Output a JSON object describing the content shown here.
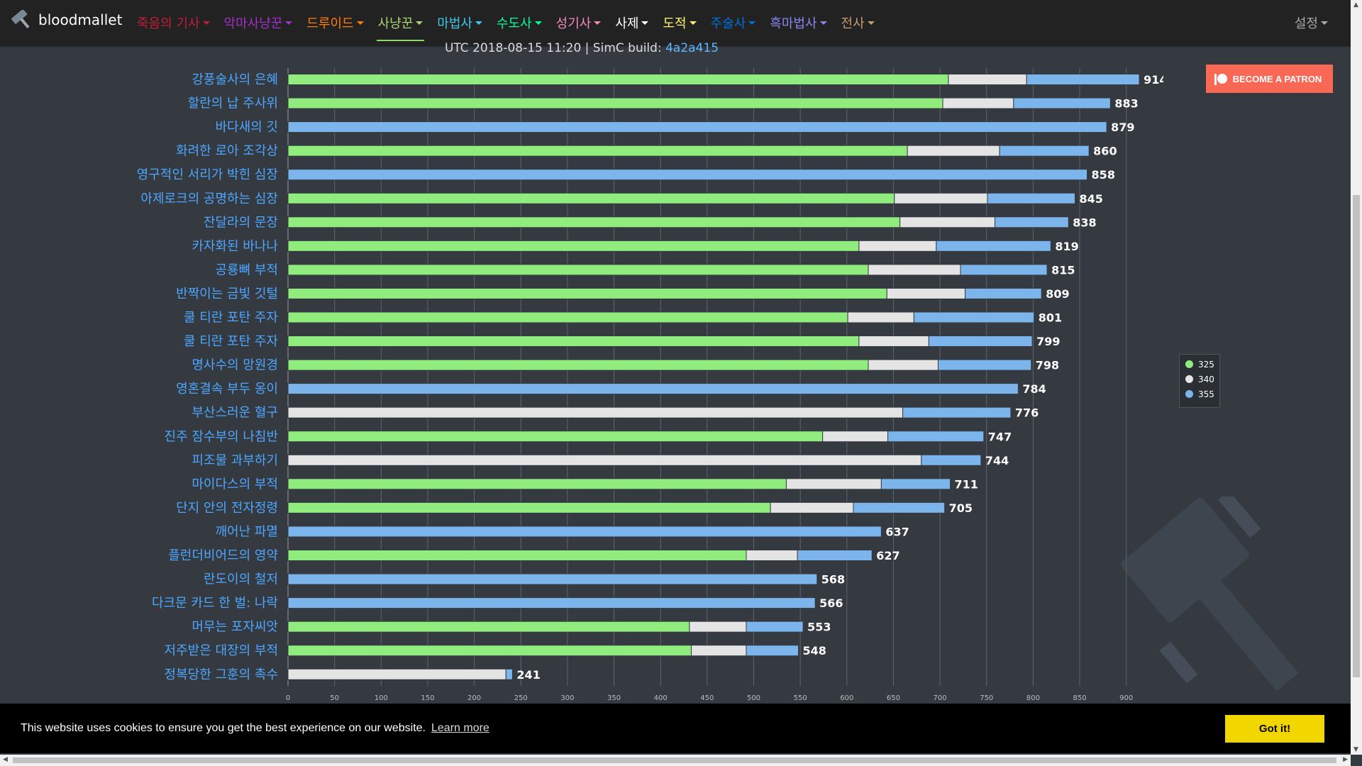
{
  "brand": {
    "name": "bloodmallet"
  },
  "nav": {
    "items": [
      {
        "label": "죽음의 기사",
        "color": "#c41e3a",
        "caret": true
      },
      {
        "label": "악마사냥꾼",
        "color": "#a330c9",
        "caret": true
      },
      {
        "label": "드루이드",
        "color": "#ff7c0a",
        "caret": true
      },
      {
        "label": "사냥꾼",
        "color": "#aad372",
        "caret": true,
        "active": true
      },
      {
        "label": "마법사",
        "color": "#3fc7eb",
        "caret": true
      },
      {
        "label": "수도사",
        "color": "#00ff98",
        "caret": true
      },
      {
        "label": "성기사",
        "color": "#f48cba",
        "caret": true
      },
      {
        "label": "사제",
        "color": "#ffffff",
        "caret": true
      },
      {
        "label": "도적",
        "color": "#fff468",
        "caret": true
      },
      {
        "label": "주술사",
        "color": "#0070dd",
        "caret": true
      },
      {
        "label": "흑마법사",
        "color": "#8788ee",
        "caret": true
      },
      {
        "label": "전사",
        "color": "#c69b6d",
        "caret": true
      }
    ],
    "settings_label": "설정"
  },
  "subtitle": {
    "prefix": "UTC 2018-08-15 11:20 | SimC build: ",
    "build": "4a2a415"
  },
  "patron_button": {
    "label": "BECOME A PATRON"
  },
  "cookie_banner": {
    "text": "This website uses cookies to ensure you get the best experience on our website.",
    "link": "Learn more",
    "button": "Got it!"
  },
  "chart_data": {
    "type": "bar",
    "orientation": "horizontal",
    "stacked": true,
    "xlim": [
      0,
      1000
    ],
    "xticks": [
      0,
      50,
      100,
      150,
      200,
      250,
      300,
      350,
      400,
      450,
      500,
      550,
      600,
      650,
      700,
      750,
      800,
      850,
      900,
      950,
      1000
    ],
    "grid": true,
    "legend_position": "right",
    "series": [
      {
        "name": "325",
        "color": "#90ed7d"
      },
      {
        "name": "340",
        "color": "#e4e4e4"
      },
      {
        "name": "355",
        "color": "#7cb5ec"
      }
    ],
    "categories": [
      "강풍술사의 은혜",
      "할란의 납 주사위",
      "바다새의 깃",
      "화려한 로아 조각상",
      "영구적인 서리가 박힌 심장",
      "아제로크의 공명하는 심장",
      "잔달라의 문장",
      "카자화된 바나나",
      "공룡뼈 부적",
      "반짝이는 금빛 깃털",
      "쿨 티란 포탄 주자",
      "쿨 티란 포탄 주자",
      "명사수의 망원경",
      "영혼결속 부두 옹이",
      "부산스러운 혈구",
      "진주 잠수부의 나침반",
      "피조물 과부하기",
      "마이다스의 부적",
      "단지 안의 전자정령",
      "깨어난 파멸",
      "플런더비어드의 영약",
      "란도이의 철저",
      "다크문 카드 한 벌: 나락",
      "머무는 포자씨앗",
      "저주받은 대장의 부적",
      "정복당한 그훈의 촉수"
    ],
    "rows": [
      {
        "v325": 709,
        "v340": 793,
        "v355": 914,
        "total": 914
      },
      {
        "v325": 703,
        "v340": 779,
        "v355": 883,
        "total": 883
      },
      {
        "v325": null,
        "v340": null,
        "v355": 879,
        "total": 879
      },
      {
        "v325": 665,
        "v340": 764,
        "v355": 860,
        "total": 860
      },
      {
        "v325": null,
        "v340": null,
        "v355": 858,
        "total": 858
      },
      {
        "v325": 651,
        "v340": 751,
        "v355": 845,
        "total": 845
      },
      {
        "v325": 657,
        "v340": 759,
        "v355": 838,
        "total": 838
      },
      {
        "v325": 613,
        "v340": 696,
        "v355": 819,
        "total": 819
      },
      {
        "v325": 623,
        "v340": 722,
        "v355": 815,
        "total": 815
      },
      {
        "v325": 643,
        "v340": 727,
        "v355": 809,
        "total": 809
      },
      {
        "v325": 601,
        "v340": 672,
        "v355": 801,
        "total": 801
      },
      {
        "v325": 613,
        "v340": 688,
        "v355": 799,
        "total": 799
      },
      {
        "v325": 623,
        "v340": 698,
        "v355": 798,
        "total": 798
      },
      {
        "v325": null,
        "v340": null,
        "v355": 784,
        "total": 784
      },
      {
        "v325": null,
        "v340": 660,
        "v355": 776,
        "total": 776
      },
      {
        "v325": 574,
        "v340": 644,
        "v355": 747,
        "total": 747
      },
      {
        "v325": null,
        "v340": 680,
        "v355": 744,
        "total": 744
      },
      {
        "v325": 535,
        "v340": 637,
        "v355": 711,
        "total": 711
      },
      {
        "v325": 518,
        "v340": 607,
        "v355": 705,
        "total": 705
      },
      {
        "v325": null,
        "v340": null,
        "v355": 637,
        "total": 637
      },
      {
        "v325": 492,
        "v340": 547,
        "v355": 627,
        "total": 627
      },
      {
        "v325": null,
        "v340": null,
        "v355": 568,
        "total": 568
      },
      {
        "v325": null,
        "v340": null,
        "v355": 566,
        "total": 566
      },
      {
        "v325": 431,
        "v340": 492,
        "v355": 553,
        "total": 553
      },
      {
        "v325": 433,
        "v340": 492,
        "v355": 548,
        "total": 548
      },
      {
        "v325": null,
        "v340": 234,
        "v355": 241,
        "total": 241
      }
    ]
  }
}
